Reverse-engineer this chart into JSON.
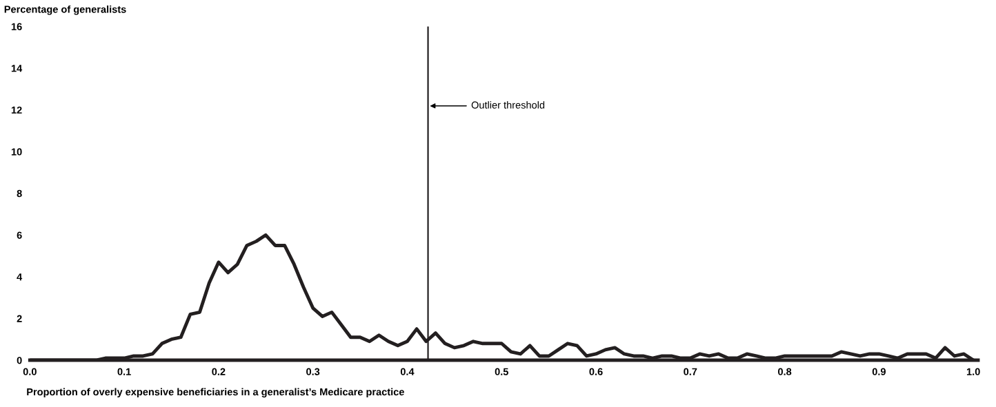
{
  "chart_data": {
    "type": "line",
    "ylabel": "Percentage of generalists",
    "xlabel": "Proportion of overly expensive beneficiaries in a generalist’s Medicare practice",
    "x": [
      0,
      0.01,
      0.02,
      0.03,
      0.04,
      0.05,
      0.06,
      0.07,
      0.08,
      0.09,
      0.1,
      0.11,
      0.12,
      0.13,
      0.14,
      0.15,
      0.16,
      0.17,
      0.18,
      0.19,
      0.2,
      0.21,
      0.22,
      0.23,
      0.24,
      0.25,
      0.26,
      0.27,
      0.28,
      0.29,
      0.3,
      0.31,
      0.32,
      0.33,
      0.34,
      0.35,
      0.36,
      0.37,
      0.38,
      0.39,
      0.4,
      0.41,
      0.42,
      0.43,
      0.44,
      0.45,
      0.46,
      0.47,
      0.48,
      0.49,
      0.5,
      0.51,
      0.52,
      0.53,
      0.54,
      0.55,
      0.56,
      0.57,
      0.58,
      0.59,
      0.6,
      0.61,
      0.62,
      0.63,
      0.64,
      0.65,
      0.66,
      0.67,
      0.68,
      0.69,
      0.7,
      0.71,
      0.72,
      0.73,
      0.74,
      0.75,
      0.76,
      0.77,
      0.78,
      0.79,
      0.8,
      0.81,
      0.82,
      0.83,
      0.84,
      0.85,
      0.86,
      0.87,
      0.88,
      0.89,
      0.9,
      0.91,
      0.92,
      0.93,
      0.94,
      0.95,
      0.96,
      0.97,
      0.98,
      0.99,
      1.0
    ],
    "series": [
      {
        "color": "#231f20",
        "values": [
          0,
          0,
          0,
          0,
          0,
          0,
          0,
          0,
          0.1,
          0.1,
          0.1,
          0.2,
          0.2,
          0.3,
          0.8,
          1.0,
          1.1,
          2.2,
          2.3,
          3.7,
          4.7,
          4.2,
          4.6,
          5.5,
          5.7,
          6.0,
          5.5,
          5.5,
          4.6,
          3.5,
          2.5,
          2.1,
          2.3,
          1.7,
          1.1,
          1.1,
          0.9,
          1.2,
          0.9,
          0.7,
          0.9,
          1.5,
          0.9,
          1.3,
          0.8,
          0.6,
          0.7,
          0.9,
          0.8,
          0.8,
          0.8,
          0.4,
          0.3,
          0.7,
          0.2,
          0.2,
          0.5,
          0.8,
          0.7,
          0.2,
          0.3,
          0.5,
          0.6,
          0.3,
          0.2,
          0.2,
          0.1,
          0.2,
          0.2,
          0.1,
          0.1,
          0.3,
          0.2,
          0.3,
          0.1,
          0.1,
          0.3,
          0.2,
          0.1,
          0.1,
          0.2,
          0.2,
          0.2,
          0.2,
          0.2,
          0.2,
          0.4,
          0.3,
          0.2,
          0.3,
          0.3,
          0.2,
          0.1,
          0.3,
          0.3,
          0.3,
          0.1,
          0.6,
          0.2,
          0.3,
          0
        ]
      }
    ],
    "xlim": [
      0,
      1.005
    ],
    "ylim": [
      0,
      16
    ],
    "xticks": [
      {
        "value": 0,
        "label": "0.0"
      },
      {
        "value": 0.1,
        "label": "0.1"
      },
      {
        "value": 0.2,
        "label": "0.2"
      },
      {
        "value": 0.3,
        "label": "0.3"
      },
      {
        "value": 0.4,
        "label": "0.4"
      },
      {
        "value": 0.5,
        "label": "0.5"
      },
      {
        "value": 0.6,
        "label": "0.6"
      },
      {
        "value": 0.7,
        "label": "0.7"
      },
      {
        "value": 0.8,
        "label": "0.8"
      },
      {
        "value": 0.9,
        "label": "0.9"
      },
      {
        "value": 1.0,
        "label": "1.0"
      }
    ],
    "yticks": [
      0,
      2,
      4,
      6,
      8,
      10,
      12,
      14,
      16
    ],
    "ref_lines": [
      {
        "axis": "x",
        "value": 0.422,
        "color": "#231f20",
        "line_style": "solid",
        "label": "Outlier threshold"
      }
    ],
    "grid": false,
    "legend": false,
    "marker": "none",
    "line_style": "solid"
  }
}
